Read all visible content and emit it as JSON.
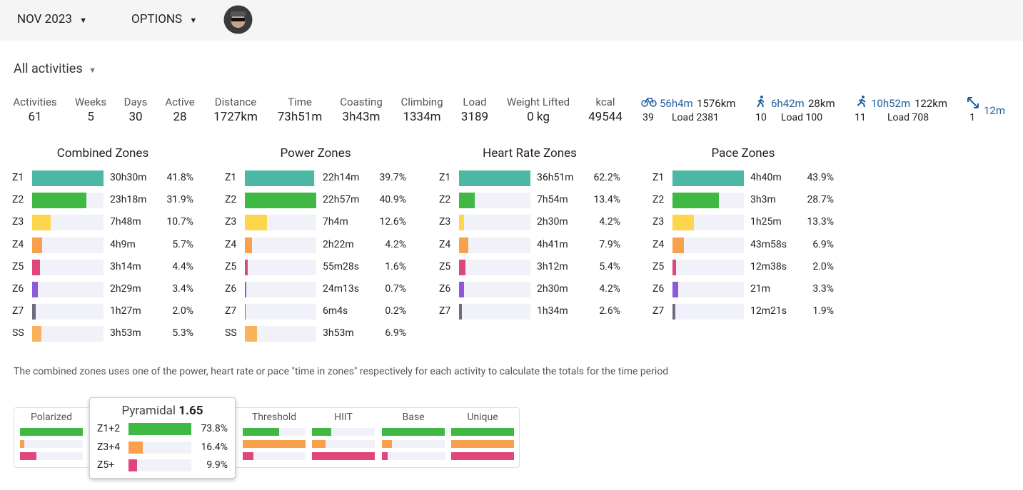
{
  "header": {
    "month": "NOV 2023",
    "options": "OPTIONS"
  },
  "filter": "All activities",
  "stats": [
    {
      "label": "Activities",
      "value": "61"
    },
    {
      "label": "Weeks",
      "value": "5"
    },
    {
      "label": "Days",
      "value": "30"
    },
    {
      "label": "Active",
      "value": "28"
    },
    {
      "label": "Distance",
      "value": "1727km"
    },
    {
      "label": "Time",
      "value": "73h51m"
    },
    {
      "label": "Coasting",
      "value": "3h43m"
    },
    {
      "label": "Climbing",
      "value": "1334m"
    },
    {
      "label": "Load",
      "value": "3189"
    },
    {
      "label": "Weight Lifted",
      "value": "0 kg"
    },
    {
      "label": "kcal",
      "value": "49544"
    }
  ],
  "sports": [
    {
      "time": "56h4m",
      "distance": "1576km",
      "count": "39",
      "load": "Load 2381"
    },
    {
      "time": "6h42m",
      "distance": "28km",
      "count": "10",
      "load": "Load 100"
    },
    {
      "time": "10h52m",
      "distance": "122km",
      "count": "11",
      "load": "Load 708"
    },
    {
      "time": "12m",
      "count": "1"
    }
  ],
  "zone_colors": {
    "Z1": "#4cb8a4",
    "Z2": "#3fb844",
    "Z3": "#fdd64b",
    "Z4": "#f9a04d",
    "Z5": "#e0457b",
    "Z6": "#8c5ad8",
    "Z7": "#6f6c80",
    "SS": "#f9b45b"
  },
  "zone_panels": [
    {
      "title": "Combined Zones",
      "rows": [
        {
          "zone": "Z1",
          "time": "30h30m",
          "pct": 41.8,
          "pct_label": "41.8%"
        },
        {
          "zone": "Z2",
          "time": "23h18m",
          "pct": 31.9,
          "pct_label": "31.9%"
        },
        {
          "zone": "Z3",
          "time": "7h48m",
          "pct": 10.7,
          "pct_label": "10.7%"
        },
        {
          "zone": "Z4",
          "time": "4h9m",
          "pct": 5.7,
          "pct_label": "5.7%"
        },
        {
          "zone": "Z5",
          "time": "3h14m",
          "pct": 4.4,
          "pct_label": "4.4%"
        },
        {
          "zone": "Z6",
          "time": "2h29m",
          "pct": 3.4,
          "pct_label": "3.4%"
        },
        {
          "zone": "Z7",
          "time": "1h27m",
          "pct": 2.0,
          "pct_label": "2.0%"
        },
        {
          "zone": "SS",
          "time": "3h53m",
          "pct": 5.3,
          "pct_label": "5.3%"
        }
      ]
    },
    {
      "title": "Power Zones",
      "rows": [
        {
          "zone": "Z1",
          "time": "22h14m",
          "pct": 39.7,
          "pct_label": "39.7%"
        },
        {
          "zone": "Z2",
          "time": "22h57m",
          "pct": 40.9,
          "pct_label": "40.9%"
        },
        {
          "zone": "Z3",
          "time": "7h4m",
          "pct": 12.6,
          "pct_label": "12.6%"
        },
        {
          "zone": "Z4",
          "time": "2h22m",
          "pct": 4.2,
          "pct_label": "4.2%"
        },
        {
          "zone": "Z5",
          "time": "55m28s",
          "pct": 1.6,
          "pct_label": "1.6%"
        },
        {
          "zone": "Z6",
          "time": "24m13s",
          "pct": 0.7,
          "pct_label": "0.7%"
        },
        {
          "zone": "Z7",
          "time": "6m4s",
          "pct": 0.2,
          "pct_label": "0.2%"
        },
        {
          "zone": "SS",
          "time": "3h53m",
          "pct": 6.9,
          "pct_label": "6.9%"
        }
      ]
    },
    {
      "title": "Heart Rate Zones",
      "rows": [
        {
          "zone": "Z1",
          "time": "36h51m",
          "pct": 62.2,
          "pct_label": "62.2%"
        },
        {
          "zone": "Z2",
          "time": "7h54m",
          "pct": 13.4,
          "pct_label": "13.4%"
        },
        {
          "zone": "Z3",
          "time": "2h30m",
          "pct": 4.2,
          "pct_label": "4.2%"
        },
        {
          "zone": "Z4",
          "time": "4h41m",
          "pct": 7.9,
          "pct_label": "7.9%"
        },
        {
          "zone": "Z5",
          "time": "3h12m",
          "pct": 5.4,
          "pct_label": "5.4%"
        },
        {
          "zone": "Z6",
          "time": "2h30m",
          "pct": 4.2,
          "pct_label": "4.2%"
        },
        {
          "zone": "Z7",
          "time": "1h34m",
          "pct": 2.6,
          "pct_label": "2.6%"
        }
      ]
    },
    {
      "title": "Pace Zones",
      "rows": [
        {
          "zone": "Z1",
          "time": "4h40m",
          "pct": 43.9,
          "pct_label": "43.9%"
        },
        {
          "zone": "Z2",
          "time": "3h3m",
          "pct": 28.7,
          "pct_label": "28.7%"
        },
        {
          "zone": "Z3",
          "time": "1h25m",
          "pct": 13.3,
          "pct_label": "13.3%"
        },
        {
          "zone": "Z4",
          "time": "43m58s",
          "pct": 6.9,
          "pct_label": "6.9%"
        },
        {
          "zone": "Z5",
          "time": "12m38s",
          "pct": 2.0,
          "pct_label": "2.0%"
        },
        {
          "zone": "Z6",
          "time": "21m",
          "pct": 3.3,
          "pct_label": "3.3%"
        },
        {
          "zone": "Z7",
          "time": "12m21s",
          "pct": 1.9,
          "pct_label": "1.9%"
        }
      ]
    }
  ],
  "note": "The combined zones uses one of the power, heart rate or pace \"time in zones\" respectively for each activity to calculate the totals for the time period",
  "polarization": {
    "colors": [
      "#3fb844",
      "#f9a04d",
      "#e0457b"
    ],
    "models": [
      {
        "name": "Polarized",
        "values": [
          75,
          5,
          20
        ]
      },
      {
        "name": "Threshold",
        "values": [
          35,
          60,
          10
        ]
      },
      {
        "name": "HIIT",
        "values": [
          20,
          14,
          66
        ]
      },
      {
        "name": "Base",
        "values": [
          80,
          13,
          7
        ]
      },
      {
        "name": "Unique",
        "values": [
          33,
          33,
          33
        ]
      }
    ],
    "tooltip": {
      "title": "Pyramidal",
      "score": "1.65",
      "rows": [
        {
          "label": "Z1+2",
          "value": 73.8,
          "value_label": "73.8%"
        },
        {
          "label": "Z3+4",
          "value": 16.4,
          "value_label": "16.4%"
        },
        {
          "label": "Z5+",
          "value": 9.9,
          "value_label": "9.9%"
        }
      ]
    }
  }
}
